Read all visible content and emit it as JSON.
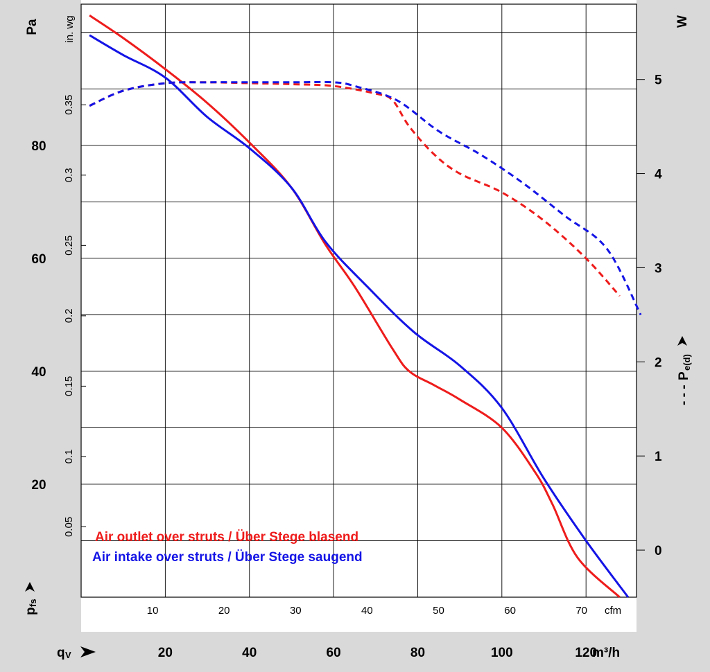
{
  "chart_data": {
    "type": "line",
    "left_axis": {
      "unit_label": "Pa",
      "ticks": [
        20,
        40,
        60,
        80
      ],
      "range": [
        0,
        105
      ],
      "symbol": {
        "main": "p",
        "sub": "fs"
      }
    },
    "inch_axis": {
      "unit_label": "in. wg",
      "ticks": [
        "0.05",
        "0.1",
        "0.15",
        "0.2",
        "0.25",
        "0.3",
        "0.35"
      ]
    },
    "right_axis": {
      "unit_label": "W",
      "ticks": [
        "0",
        "1",
        "2",
        "3",
        "4",
        "5"
      ],
      "range": [
        -0.5,
        5.8
      ],
      "symbol": {
        "prefix": "- - -",
        "main": "P",
        "sub": "e(d)"
      }
    },
    "x_axis_cfm": {
      "unit_label": "cfm",
      "ticks": [
        "10",
        "20",
        "30",
        "40",
        "50",
        "60",
        "70"
      ]
    },
    "x_axis_m3h": {
      "unit_label": "m³/h",
      "ticks": [
        20,
        40,
        60,
        80,
        100,
        120
      ],
      "range": [
        0,
        132
      ],
      "symbol": {
        "main": "q",
        "sub": "V"
      }
    },
    "grid": true,
    "series": [
      {
        "name": "Air outlet over struts / Über Stege blasend",
        "color": "#ee1c1c",
        "style": "solid",
        "axis": "left",
        "points": [
          [
            2,
            103
          ],
          [
            10,
            99
          ],
          [
            20,
            93.5
          ],
          [
            30,
            87.5
          ],
          [
            40,
            80.5
          ],
          [
            50,
            72.5
          ],
          [
            58,
            62.5
          ],
          [
            65,
            55
          ],
          [
            74,
            44
          ],
          [
            78,
            40
          ],
          [
            84,
            37.5
          ],
          [
            90,
            35
          ],
          [
            100,
            30
          ],
          [
            108,
            22
          ],
          [
            112,
            16.5
          ],
          [
            118,
            7
          ],
          [
            128,
            0
          ]
        ]
      },
      {
        "name": "Air intake over struts / Über Stege saugend",
        "color": "#1414e6",
        "style": "solid",
        "axis": "left",
        "points": [
          [
            2,
            99.5
          ],
          [
            10,
            96
          ],
          [
            20,
            92
          ],
          [
            30,
            85
          ],
          [
            40,
            79.5
          ],
          [
            50,
            72.5
          ],
          [
            58,
            63
          ],
          [
            68,
            55
          ],
          [
            79,
            47
          ],
          [
            90,
            41
          ],
          [
            100,
            33.5
          ],
          [
            110,
            21
          ],
          [
            120,
            10
          ],
          [
            130,
            0
          ]
        ]
      },
      {
        "color": "#ee1c1c",
        "style": "dashed",
        "axis": "right",
        "points": [
          [
            2,
            4.72
          ],
          [
            10,
            4.88
          ],
          [
            20,
            4.96
          ],
          [
            30,
            4.97
          ],
          [
            40,
            4.96
          ],
          [
            50,
            4.95
          ],
          [
            60,
            4.93
          ],
          [
            70,
            4.85
          ],
          [
            74,
            4.78
          ],
          [
            78,
            4.5
          ],
          [
            84,
            4.2
          ],
          [
            90,
            4.0
          ],
          [
            100,
            3.8
          ],
          [
            110,
            3.5
          ],
          [
            120,
            3.1
          ],
          [
            128,
            2.7
          ]
        ]
      },
      {
        "color": "#1414e6",
        "style": "dashed",
        "axis": "right",
        "points": [
          [
            2,
            4.72
          ],
          [
            10,
            4.88
          ],
          [
            20,
            4.96
          ],
          [
            30,
            4.97
          ],
          [
            40,
            4.97
          ],
          [
            50,
            4.97
          ],
          [
            60,
            4.97
          ],
          [
            65,
            4.93
          ],
          [
            75,
            4.78
          ],
          [
            85,
            4.45
          ],
          [
            95,
            4.2
          ],
          [
            105,
            3.9
          ],
          [
            115,
            3.55
          ],
          [
            125,
            3.2
          ],
          [
            133,
            2.5
          ]
        ]
      }
    ]
  }
}
